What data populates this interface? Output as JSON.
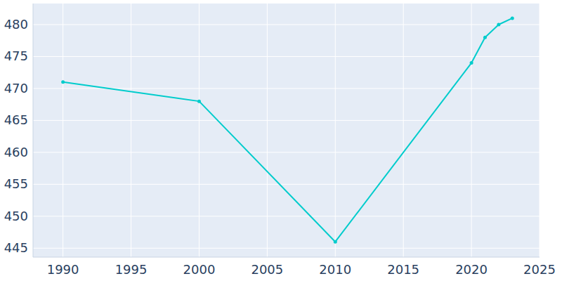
{
  "chart_data": {
    "type": "line",
    "x": [
      1990,
      2000,
      2010,
      2020,
      2021,
      2022,
      2023
    ],
    "values": [
      471,
      468,
      446,
      474,
      478,
      480,
      481
    ],
    "color": "#00cccc",
    "marker": "circle",
    "xlim": [
      1987.8,
      2025
    ],
    "ylim": [
      443.6,
      483.3
    ],
    "xticks": [
      1990,
      1995,
      2000,
      2005,
      2010,
      2015,
      2020,
      2025
    ],
    "yticks": [
      445,
      450,
      455,
      460,
      465,
      470,
      475,
      480
    ],
    "grid": true
  }
}
